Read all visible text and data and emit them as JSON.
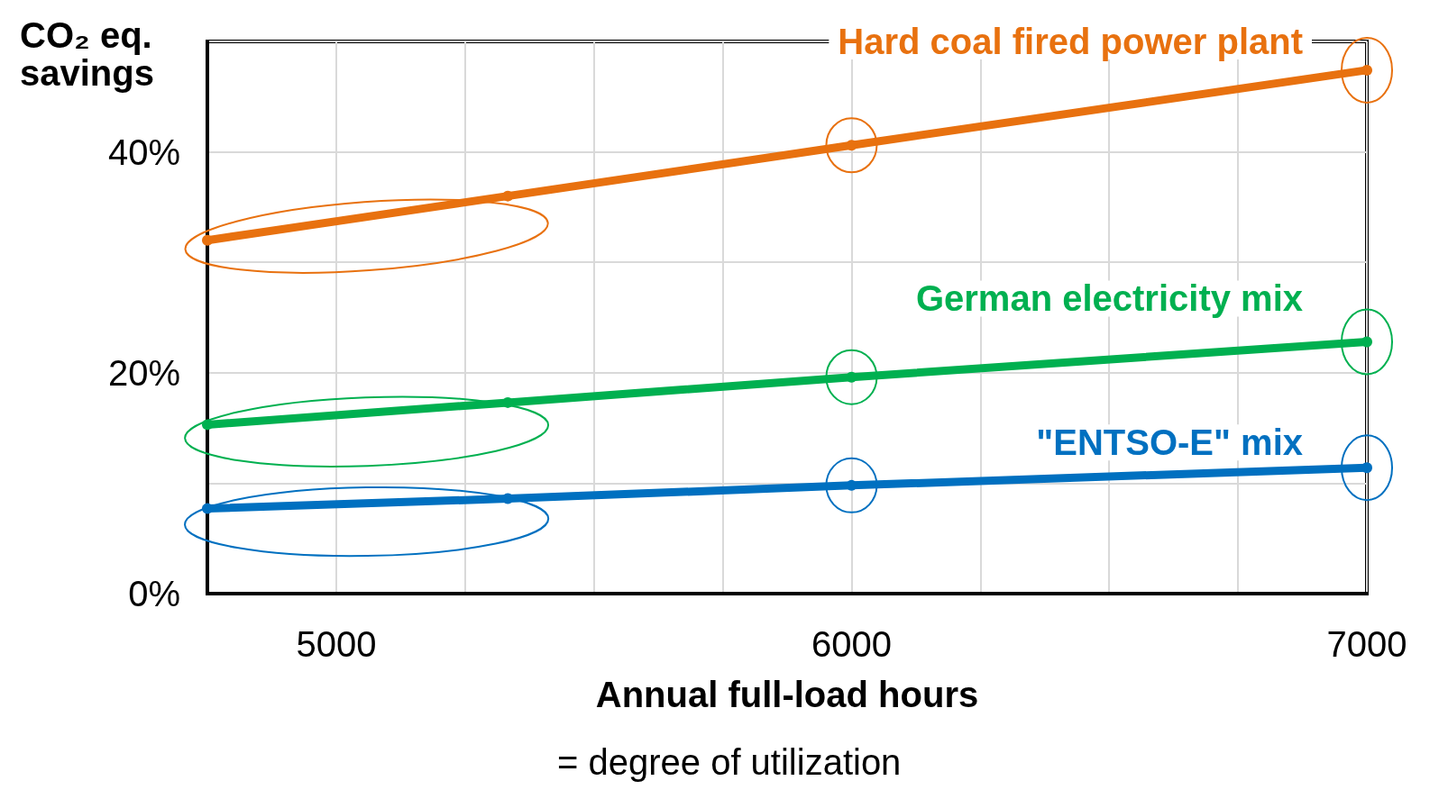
{
  "chart_data": {
    "type": "line",
    "ylabel": "CO₂ eq. savings",
    "xlabel": "Annual full-load hours",
    "annotations": [
      "= degree of utilization"
    ],
    "x": [
      4750,
      5333,
      6000,
      7000
    ],
    "series": [
      {
        "name": "Hard coal fired power plant",
        "color": "#e8710f",
        "values": [
          32,
          36,
          40.6,
          47.4
        ]
      },
      {
        "name": "German electricity mix",
        "color": "#00b050",
        "values": [
          15.3,
          17.3,
          19.6,
          22.8
        ]
      },
      {
        "name": "\"ENTSO-E\" mix",
        "color": "#0070c0",
        "values": [
          7.7,
          8.6,
          9.8,
          11.4
        ]
      }
    ],
    "xlim": [
      4750,
      7000
    ],
    "xticks": [
      {
        "value": 4750,
        "label": null
      },
      {
        "value": 5000,
        "label": "5000"
      },
      {
        "value": 5250,
        "label": null
      },
      {
        "value": 5500,
        "label": null
      },
      {
        "value": 5750,
        "label": null
      },
      {
        "value": 6000,
        "label": "6000"
      },
      {
        "value": 6250,
        "label": null
      },
      {
        "value": 6500,
        "label": null
      },
      {
        "value": 6750,
        "label": null
      },
      {
        "value": 7000,
        "label": "7000"
      }
    ],
    "ylim": [
      0,
      50
    ],
    "yticks": [
      {
        "value": 0,
        "label": "0%"
      },
      {
        "value": 10,
        "label": null
      },
      {
        "value": 20,
        "label": "20%"
      },
      {
        "value": 30,
        "label": null
      },
      {
        "value": 40,
        "label": "40%"
      },
      {
        "value": 50,
        "label": null
      }
    ],
    "grid": true,
    "marker": "circle",
    "line_style": "solid"
  }
}
